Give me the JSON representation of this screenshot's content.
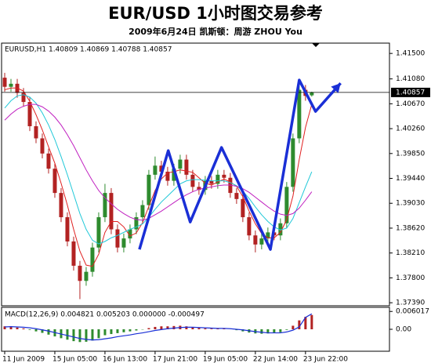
{
  "header": {
    "title": "EUR/USD  1小时图交易参考",
    "subtitle": "2009年6月24日  凯斯顿：周游 ZHOU You"
  },
  "chart_data": [
    {
      "type": "candlestick",
      "info": "EURUSD,H1 1.40809 1.40869 1.40788 1.40857",
      "up_color": "#2e8b2e",
      "down_color": "#b22222",
      "open": [
        1.411,
        1.4095,
        1.41,
        1.4085,
        1.407,
        1.403,
        1.401,
        1.3985,
        1.396,
        1.392,
        1.388,
        1.384,
        1.38,
        1.3775,
        1.379,
        1.383,
        1.388,
        1.392,
        1.386,
        1.383,
        1.3845,
        1.386,
        1.388,
        1.39,
        1.395,
        1.3965,
        1.3955,
        1.394,
        1.396,
        1.3975,
        1.395,
        1.393,
        1.3925,
        1.394,
        1.3935,
        1.395,
        1.3945,
        1.392,
        1.391,
        1.388,
        1.385,
        1.3835,
        1.3845,
        1.3855,
        1.385,
        1.387,
        1.393,
        1.401,
        1.409,
        1.40809
      ],
      "high": [
        1.4118,
        1.4108,
        1.4108,
        1.4093,
        1.4078,
        1.4038,
        1.4018,
        1.3993,
        1.3968,
        1.3928,
        1.3888,
        1.3848,
        1.3808,
        1.3798,
        1.3838,
        1.3888,
        1.3935,
        1.3928,
        1.3868,
        1.3853,
        1.3868,
        1.3888,
        1.3908,
        1.3958,
        1.398,
        1.3973,
        1.3963,
        1.3968,
        1.3983,
        1.3983,
        1.3958,
        1.3938,
        1.3948,
        1.3948,
        1.3958,
        1.3958,
        1.3953,
        1.3928,
        1.3918,
        1.3888,
        1.3858,
        1.3853,
        1.3863,
        1.3863,
        1.3878,
        1.3938,
        1.4018,
        1.4105,
        1.4098,
        1.40869
      ],
      "low": [
        1.4087,
        1.4087,
        1.4077,
        1.4062,
        1.4022,
        1.4002,
        1.3977,
        1.3952,
        1.3912,
        1.3872,
        1.3832,
        1.3792,
        1.3745,
        1.3767,
        1.3782,
        1.3822,
        1.3872,
        1.3852,
        1.3822,
        1.3822,
        1.3837,
        1.3852,
        1.3872,
        1.3892,
        1.3942,
        1.3947,
        1.3932,
        1.3932,
        1.3952,
        1.3942,
        1.3922,
        1.3917,
        1.3917,
        1.3927,
        1.3927,
        1.3937,
        1.3912,
        1.3902,
        1.3872,
        1.3842,
        1.3822,
        1.3827,
        1.3837,
        1.3842,
        1.3842,
        1.3862,
        1.3922,
        1.4002,
        1.4072,
        1.40788
      ],
      "close": [
        1.4095,
        1.41,
        1.4085,
        1.407,
        1.403,
        1.401,
        1.3985,
        1.396,
        1.392,
        1.388,
        1.384,
        1.38,
        1.3775,
        1.379,
        1.383,
        1.388,
        1.392,
        1.386,
        1.383,
        1.3845,
        1.386,
        1.388,
        1.39,
        1.395,
        1.3965,
        1.3955,
        1.394,
        1.396,
        1.3975,
        1.395,
        1.393,
        1.3925,
        1.394,
        1.3935,
        1.395,
        1.3945,
        1.392,
        1.391,
        1.388,
        1.385,
        1.3835,
        1.3845,
        1.3855,
        1.385,
        1.387,
        1.393,
        1.401,
        1.409,
        1.408,
        1.40857
      ],
      "series": [
        {
          "color": "#e02020",
          "values": [
            1.409,
            1.4093,
            1.4093,
            1.4088,
            1.4071,
            1.4049,
            1.4024,
            1.3996,
            1.3969,
            1.3936,
            1.39,
            1.386,
            1.3824,
            1.3801,
            1.3799,
            1.3819,
            1.3855,
            1.3873,
            1.3873,
            1.3864,
            1.3849,
            1.3854,
            1.3871,
            1.3898,
            1.3924,
            1.3943,
            1.3953,
            1.3955,
            1.3958,
            1.3956,
            1.3954,
            1.3945,
            1.3936,
            1.3933,
            1.3938,
            1.3943,
            1.3938,
            1.3931,
            1.3914,
            1.389,
            1.3869,
            1.3853,
            1.3846,
            1.3846,
            1.3855,
            1.3876,
            1.3915,
            1.3975,
            1.4028,
            1.4066
          ]
        },
        {
          "color": "#20c8d8",
          "values": [
            1.406,
            1.4072,
            1.408,
            1.4082,
            1.4078,
            1.4068,
            1.4052,
            1.4032,
            1.4008,
            1.398,
            1.395,
            1.3918,
            1.3886,
            1.386,
            1.3842,
            1.3836,
            1.384,
            1.3846,
            1.385,
            1.3855,
            1.386,
            1.3864,
            1.3869,
            1.388,
            1.3893,
            1.3905,
            1.3915,
            1.3925,
            1.3935,
            1.394,
            1.3942,
            1.3942,
            1.3941,
            1.394,
            1.394,
            1.394,
            1.3937,
            1.3932,
            1.3923,
            1.3911,
            1.3897,
            1.3884,
            1.3873,
            1.3864,
            1.3859,
            1.3862,
            1.3878,
            1.3904,
            1.393,
            1.3955
          ]
        },
        {
          "color": "#c020c0",
          "values": [
            1.404,
            1.405,
            1.4058,
            1.4063,
            1.4066,
            1.4066,
            1.4062,
            1.4055,
            1.4045,
            1.4032,
            1.4016,
            1.3998,
            1.3978,
            1.3958,
            1.394,
            1.3924,
            1.3912,
            1.3902,
            1.3893,
            1.3886,
            1.388,
            1.3876,
            1.3875,
            1.3878,
            1.3884,
            1.389,
            1.3897,
            1.3904,
            1.3911,
            1.3917,
            1.3922,
            1.3926,
            1.3928,
            1.393,
            1.3932,
            1.3933,
            1.3933,
            1.3931,
            1.3927,
            1.3921,
            1.3913,
            1.3905,
            1.3897,
            1.389,
            1.3885,
            1.3883,
            1.3886,
            1.3895,
            1.3908,
            1.3922
          ]
        }
      ],
      "annotation": {
        "color": "#1a2fd6",
        "x": [
          21.5,
          26.1,
          29.6,
          34.6,
          42.4,
          47,
          49.6,
          53.6
        ],
        "values": [
          1.38269,
          1.39897,
          1.38721,
          1.3995,
          1.38269,
          1.41061,
          1.40544,
          1.41009
        ]
      },
      "current_price": {
        "value": 1.40857,
        "label": "1.40857"
      },
      "xlim": [
        -0.5,
        61.4
      ],
      "xticks": [
        {
          "value": 0,
          "label": "11 Jun 2009"
        },
        {
          "value": 8,
          "label": "15 Jun 05:00"
        },
        {
          "value": 16,
          "label": "16 Jun 13:00"
        },
        {
          "value": 24,
          "label": "17 Jun 21:00"
        },
        {
          "value": 32,
          "label": "19 Jun 05:00"
        },
        {
          "value": 40,
          "label": "22 Jun 14:00"
        },
        {
          "value": 48,
          "label": "23 Jun 22:00"
        }
      ],
      "ylim": [
        1.3734,
        1.4167
      ],
      "yticks": [
        {
          "value": 1.415,
          "label": "1.41500"
        },
        {
          "value": 1.4108,
          "label": "1.41080"
        },
        {
          "value": 1.4067,
          "label": "1.40670"
        },
        {
          "value": 1.4026,
          "label": "1.40260"
        },
        {
          "value": 1.3985,
          "label": "1.39850"
        },
        {
          "value": 1.3944,
          "label": "1.39440"
        },
        {
          "value": 1.3903,
          "label": "1.39030"
        },
        {
          "value": 1.3862,
          "label": "1.38620"
        },
        {
          "value": 1.3821,
          "label": "1.38210"
        },
        {
          "value": 1.378,
          "label": "1.37800"
        },
        {
          "value": 1.3739,
          "label": "1.37390"
        }
      ]
    },
    {
      "type": "macd",
      "title": "MACD(12,26,9) 0.004821 0.005203 0.000000 -0.000497",
      "up_color": "#b22222",
      "down_color": "#2e8b2e",
      "values": [
        0.001,
        0.0009,
        0.0006,
        0.0003,
        -0.0002,
        -0.0007,
        -0.0012,
        -0.0018,
        -0.0024,
        -0.003,
        -0.0035,
        -0.004,
        -0.0043,
        -0.0042,
        -0.0038,
        -0.003,
        -0.002,
        -0.0016,
        -0.0013,
        -0.001,
        -0.0007,
        -0.0004,
        -0.0001,
        0.0004,
        0.0008,
        0.001,
        0.001,
        0.0011,
        0.0012,
        0.001,
        0.0007,
        0.0004,
        0.0003,
        0.0002,
        0.0002,
        0.0002,
        0.0,
        -0.0003,
        -0.0007,
        -0.0011,
        -0.0014,
        -0.0015,
        -0.0014,
        -0.0013,
        -0.001,
        -0.0002,
        0.0012,
        0.003,
        0.0042,
        0.004821
      ],
      "series": [
        {
          "color": "#1a2fd6",
          "values": [
            0.0008,
            0.0009,
            0.0008,
            0.0007,
            0.0005,
            0.0002,
            -0.0002,
            -0.0006,
            -0.0011,
            -0.0016,
            -0.0021,
            -0.0026,
            -0.0031,
            -0.0034,
            -0.0036,
            -0.0035,
            -0.0032,
            -0.0029,
            -0.0025,
            -0.0022,
            -0.0019,
            -0.0015,
            -0.0012,
            -0.0008,
            -0.0004,
            -0.0001,
            0.0002,
            0.0004,
            0.0006,
            0.0007,
            0.0007,
            0.0006,
            0.0005,
            0.0004,
            0.0003,
            0.0003,
            0.0002,
            0.0,
            -0.0002,
            -0.0005,
            -0.0008,
            -0.001,
            -0.0012,
            -0.0012,
            -0.0012,
            -0.0009,
            -0.0003,
            0.0008,
            0.004,
            0.005203
          ]
        }
      ],
      "ylim": [
        -0.0074,
        0.0074
      ],
      "yticks": [
        0.006017,
        {
          "value": 0,
          "label": "0.00"
        }
      ]
    }
  ]
}
